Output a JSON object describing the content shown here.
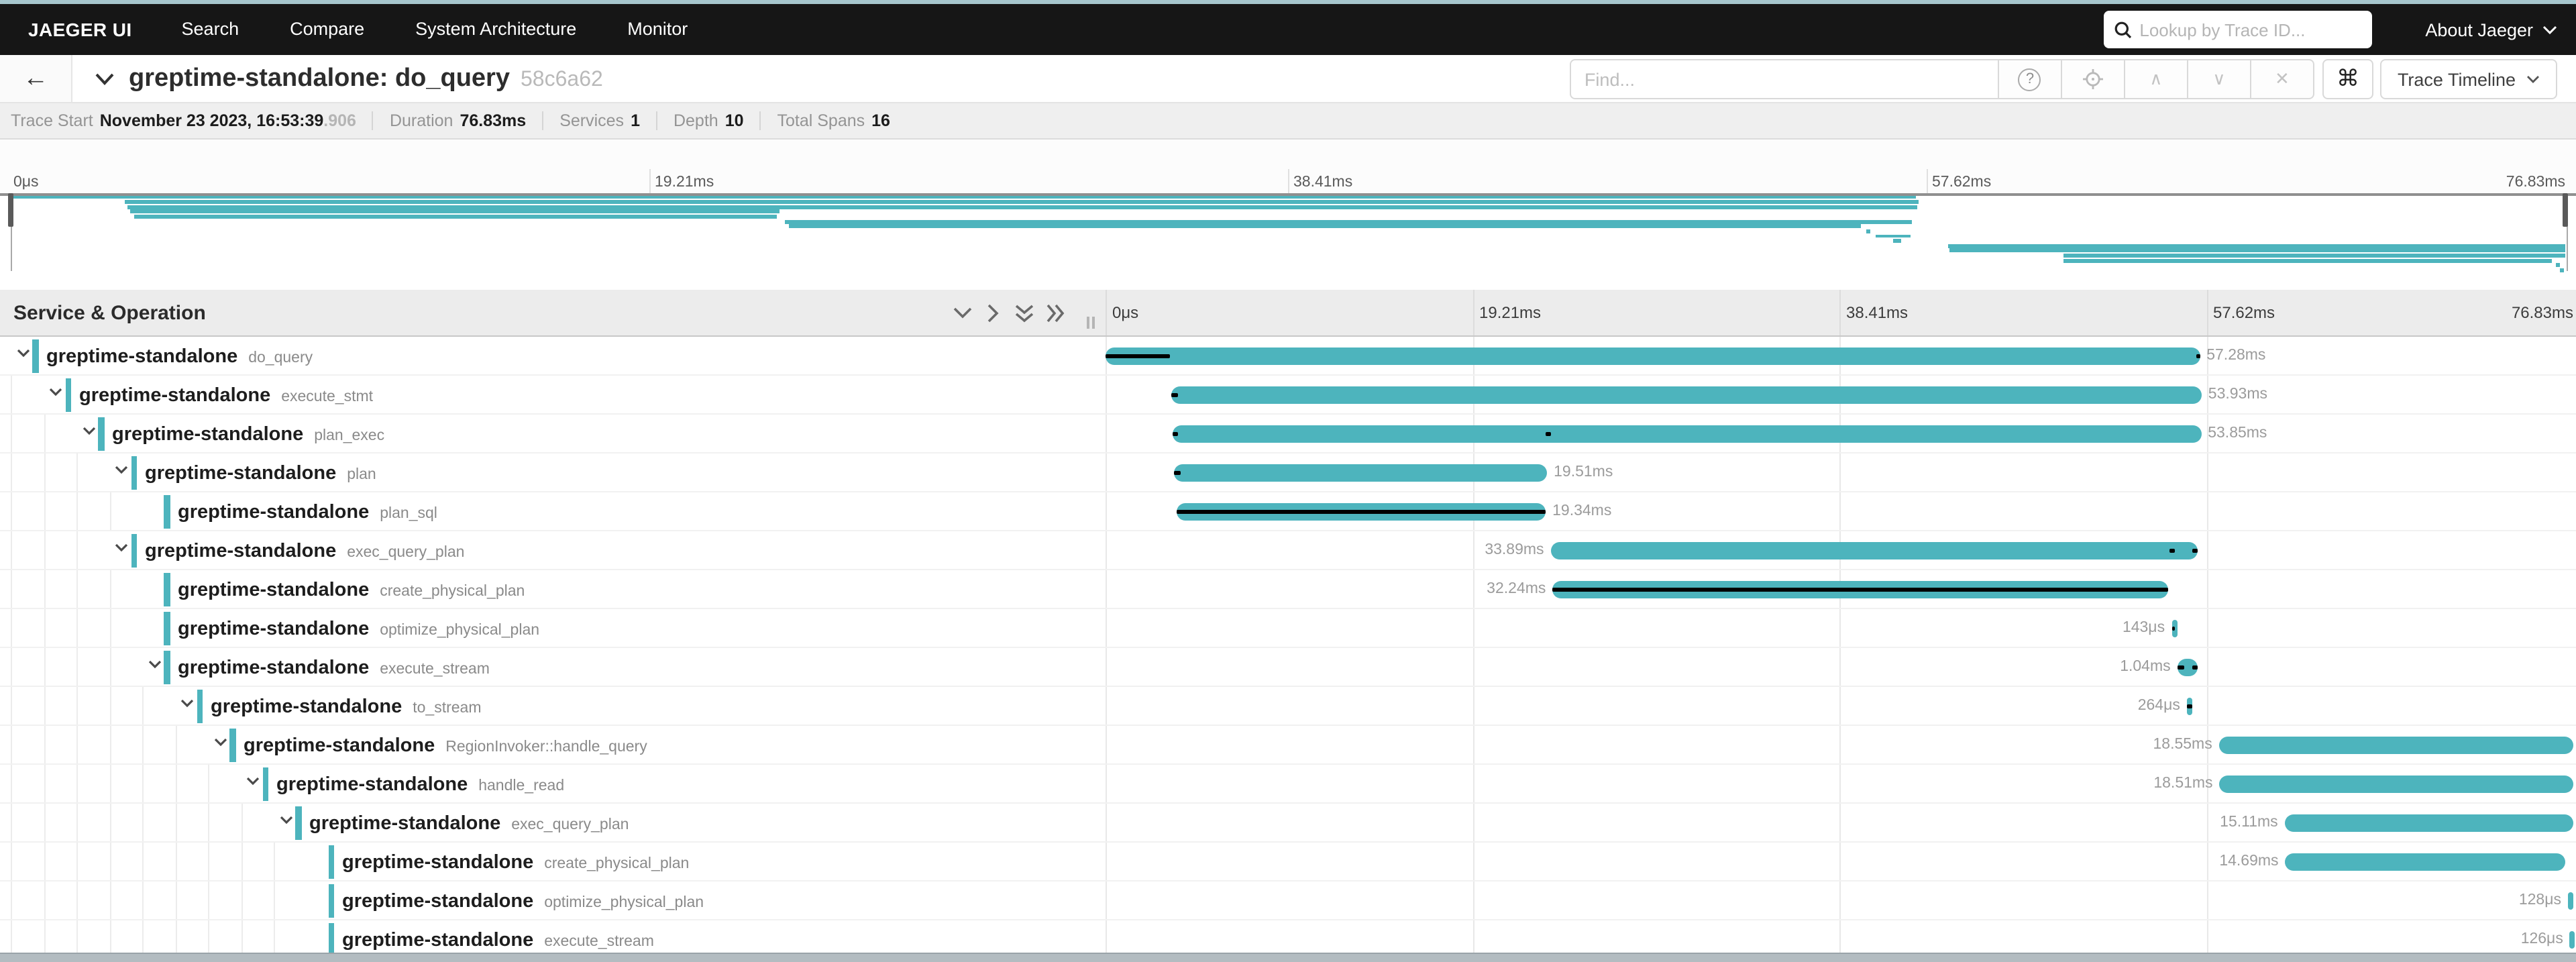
{
  "colors": {
    "accent": "#4db4bd",
    "critical": "#000000",
    "nav_bg": "#161616",
    "top_strip": "#a6c6cd"
  },
  "nav": {
    "brand": "JAEGER UI",
    "items": [
      "Search",
      "Compare",
      "System Architecture",
      "Monitor"
    ],
    "lookup_placeholder": "Lookup by Trace ID...",
    "about_label": "About Jaeger"
  },
  "trace": {
    "title": "greptime-standalone: do_query",
    "short_id": "58c6a62",
    "find_placeholder": "Find...",
    "view_label": "Trace Timeline"
  },
  "summary": {
    "trace_start_label": "Trace Start",
    "trace_start_value": "November 23 2023, 16:53:39",
    "trace_start_frac": ".906",
    "duration_label": "Duration",
    "duration_value": "76.83ms",
    "services_label": "Services",
    "services_value": "1",
    "depth_label": "Depth",
    "depth_value": "10",
    "total_spans_label": "Total Spans",
    "total_spans_value": "16"
  },
  "timeline": {
    "column_header": "Service & Operation",
    "total_ms": 76.83,
    "ticks": [
      "0μs",
      "19.21ms",
      "38.41ms",
      "57.62ms",
      "76.83ms"
    ]
  },
  "spans": [
    {
      "service": "greptime-standalone",
      "operation": "do_query",
      "depth": 0,
      "has_children": true,
      "start_ms": 0,
      "duration_ms": 57.28,
      "duration_label": "57.28ms",
      "label_side": "right",
      "critical_ms": [
        [
          0,
          3.37
        ],
        [
          57.08,
          57.28
        ]
      ]
    },
    {
      "service": "greptime-standalone",
      "operation": "execute_stmt",
      "depth": 1,
      "has_children": true,
      "start_ms": 3.44,
      "duration_ms": 53.93,
      "duration_label": "53.93ms",
      "label_side": "right",
      "critical_ms": [
        [
          3.44,
          3.76
        ]
      ]
    },
    {
      "service": "greptime-standalone",
      "operation": "plan_exec",
      "depth": 2,
      "has_children": true,
      "start_ms": 3.5,
      "duration_ms": 53.85,
      "duration_label": "53.85ms",
      "label_side": "right",
      "critical_ms": [
        [
          3.5,
          3.82
        ],
        [
          23.0,
          23.32
        ]
      ]
    },
    {
      "service": "greptime-standalone",
      "operation": "plan",
      "depth": 3,
      "has_children": true,
      "start_ms": 3.6,
      "duration_ms": 19.51,
      "duration_label": "19.51ms",
      "label_side": "right",
      "critical_ms": [
        [
          3.6,
          3.92
        ]
      ]
    },
    {
      "service": "greptime-standalone",
      "operation": "plan_sql",
      "depth": 4,
      "has_children": false,
      "start_ms": 3.7,
      "duration_ms": 19.34,
      "duration_label": "19.34ms",
      "label_side": "right",
      "critical_ms": [
        [
          3.7,
          23.04
        ]
      ]
    },
    {
      "service": "greptime-standalone",
      "operation": "exec_query_plan",
      "depth": 3,
      "has_children": true,
      "start_ms": 23.3,
      "duration_ms": 33.89,
      "duration_label": "33.89ms",
      "label_side": "left",
      "critical_ms": [
        [
          55.66,
          56.0
        ],
        [
          56.92,
          57.19
        ]
      ]
    },
    {
      "service": "greptime-standalone",
      "operation": "create_physical_plan",
      "depth": 4,
      "has_children": false,
      "start_ms": 23.4,
      "duration_ms": 32.24,
      "duration_label": "32.24ms",
      "label_side": "left",
      "critical_ms": [
        [
          23.4,
          55.64
        ]
      ]
    },
    {
      "service": "greptime-standalone",
      "operation": "optimize_physical_plan",
      "depth": 4,
      "has_children": false,
      "start_ms": 55.8,
      "duration_ms": 0.143,
      "duration_label": "143μs",
      "label_side": "left",
      "critical_ms": [
        [
          55.8,
          55.943
        ]
      ]
    },
    {
      "service": "greptime-standalone",
      "operation": "execute_stream",
      "depth": 4,
      "has_children": true,
      "start_ms": 56.1,
      "duration_ms": 1.04,
      "duration_label": "1.04ms",
      "label_side": "left",
      "critical_ms": [
        [
          56.1,
          56.45
        ],
        [
          56.85,
          57.14
        ]
      ]
    },
    {
      "service": "greptime-standalone",
      "operation": "to_stream",
      "depth": 5,
      "has_children": true,
      "start_ms": 56.6,
      "duration_ms": 0.264,
      "duration_label": "264μs",
      "label_side": "left",
      "critical_ms": [
        [
          56.6,
          56.864
        ]
      ]
    },
    {
      "service": "greptime-standalone",
      "operation": "RegionInvoker::handle_query",
      "depth": 6,
      "has_children": true,
      "start_ms": 58.28,
      "duration_ms": 18.55,
      "duration_label": "18.55ms",
      "label_side": "left",
      "critical_ms": []
    },
    {
      "service": "greptime-standalone",
      "operation": "handle_read",
      "depth": 7,
      "has_children": true,
      "start_ms": 58.31,
      "duration_ms": 18.51,
      "duration_label": "18.51ms",
      "label_side": "left",
      "critical_ms": []
    },
    {
      "service": "greptime-standalone",
      "operation": "exec_query_plan",
      "depth": 8,
      "has_children": true,
      "start_ms": 61.72,
      "duration_ms": 15.11,
      "duration_label": "15.11ms",
      "label_side": "left",
      "critical_ms": []
    },
    {
      "service": "greptime-standalone",
      "operation": "create_physical_plan",
      "depth": 9,
      "has_children": false,
      "start_ms": 61.75,
      "duration_ms": 14.69,
      "duration_label": "14.69ms",
      "label_side": "left",
      "critical_ms": []
    },
    {
      "service": "greptime-standalone",
      "operation": "optimize_physical_plan",
      "depth": 9,
      "has_children": false,
      "start_ms": 76.55,
      "duration_ms": 0.128,
      "duration_label": "128μs",
      "label_side": "left",
      "critical_ms": []
    },
    {
      "service": "greptime-standalone",
      "operation": "execute_stream",
      "depth": 9,
      "has_children": false,
      "start_ms": 76.65,
      "duration_ms": 0.126,
      "duration_label": "126μs",
      "label_side": "left",
      "critical_ms": []
    }
  ]
}
